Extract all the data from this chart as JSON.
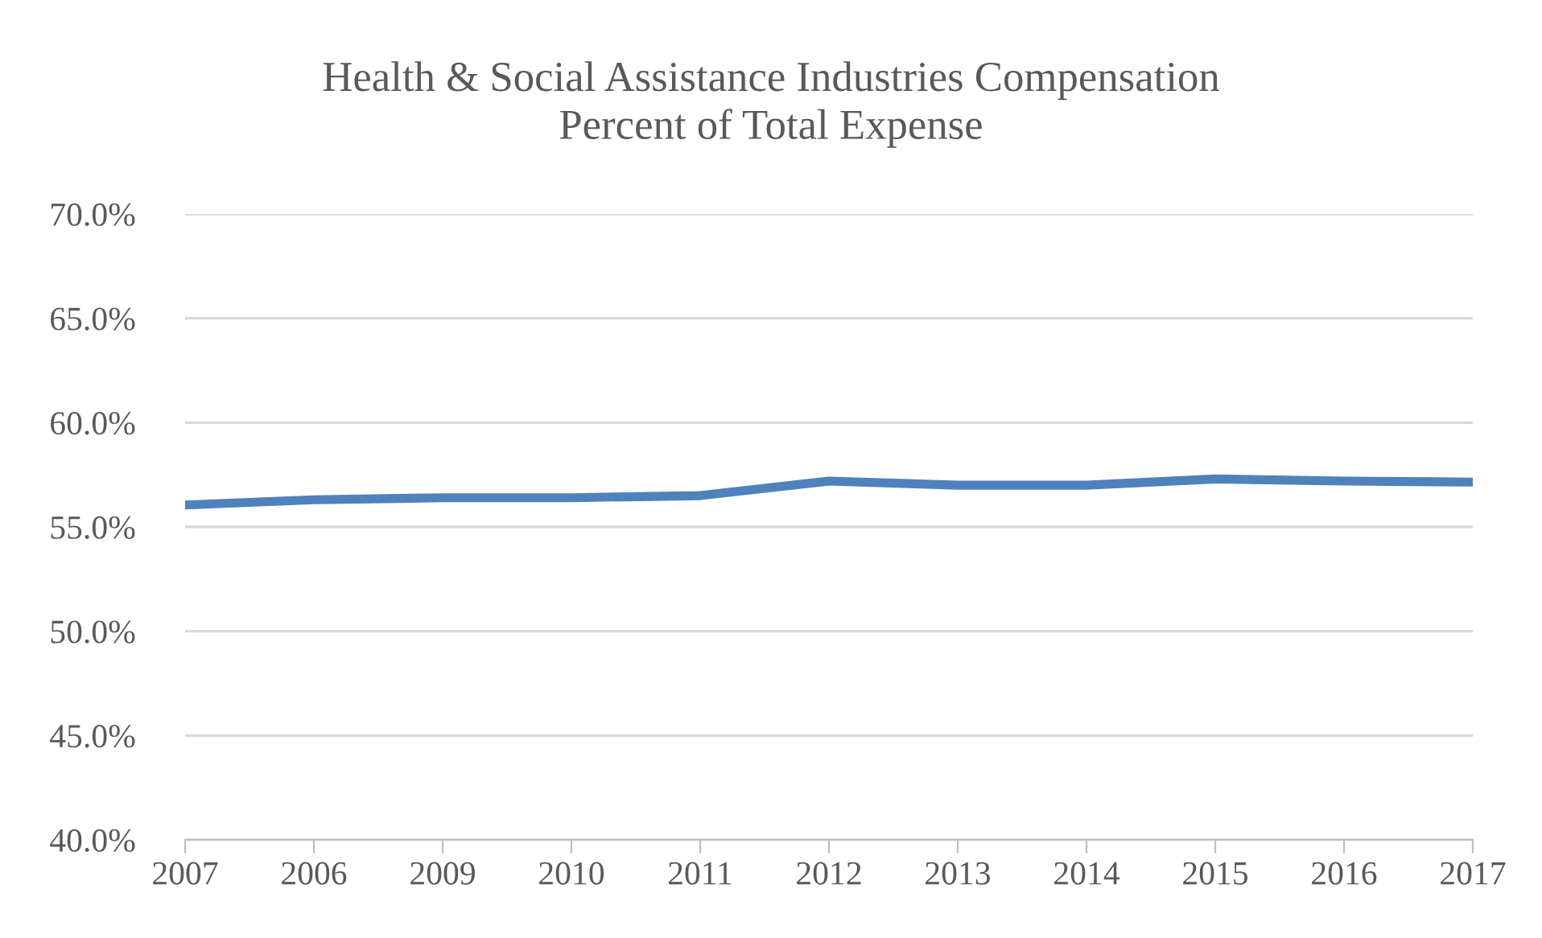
{
  "chart_data": {
    "type": "line",
    "title": "Health & Social Assistance Industries Compensation\nPercent of Total Expense",
    "categories": [
      "2007",
      "2006",
      "2009",
      "2010",
      "2011",
      "2012",
      "2013",
      "2014",
      "2015",
      "2016",
      "2017"
    ],
    "series": [
      {
        "color": "#4f81bd",
        "values": [
          56.05,
          56.3,
          56.4,
          56.4,
          56.5,
          57.2,
          57.0,
          57.0,
          57.3,
          57.2,
          57.15
        ]
      }
    ],
    "ylim": [
      40,
      70
    ],
    "yticks": [
      {
        "value": 40,
        "label": "40.0%"
      },
      {
        "value": 45,
        "label": "45.0%"
      },
      {
        "value": 50,
        "label": "50.0%"
      },
      {
        "value": 55,
        "label": "55.0%"
      },
      {
        "value": 60,
        "label": "60.0%"
      },
      {
        "value": 65,
        "label": "65.0%"
      },
      {
        "value": 70,
        "label": "70.0%"
      }
    ],
    "grid": "y",
    "marker": "none",
    "line_style": "solid"
  }
}
